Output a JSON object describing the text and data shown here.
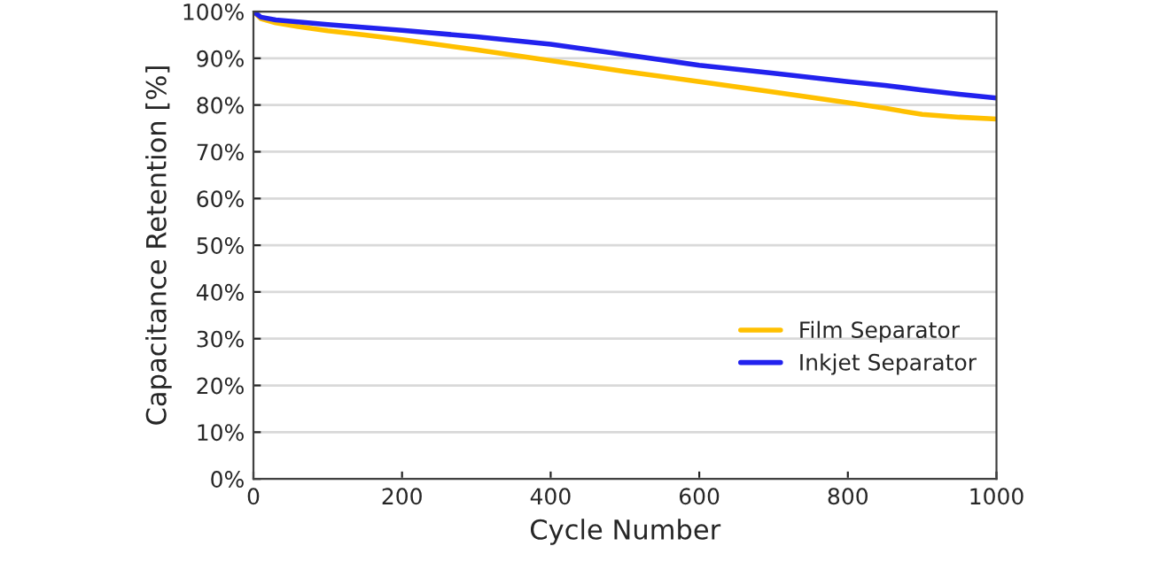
{
  "chart_data": {
    "type": "line",
    "xlabel": "Cycle Number",
    "ylabel": "Capacitance Retention [%]",
    "xlim": [
      0,
      1000
    ],
    "xticks": [
      0,
      200,
      400,
      600,
      800,
      1000
    ],
    "ylim": [
      0,
      100
    ],
    "yticks": [
      {
        "value": 0,
        "label": "0%"
      },
      {
        "value": 10,
        "label": "10%"
      },
      {
        "value": 20,
        "label": "20%"
      },
      {
        "value": 30,
        "label": "30%"
      },
      {
        "value": 40,
        "label": "40%"
      },
      {
        "value": 50,
        "label": "50%"
      },
      {
        "value": 60,
        "label": "60%"
      },
      {
        "value": 70,
        "label": "70%"
      },
      {
        "value": 80,
        "label": "80%"
      },
      {
        "value": 90,
        "label": "90%"
      },
      {
        "value": 100,
        "label": "100%"
      }
    ],
    "grid": "y",
    "legend": "bottom right",
    "x": [
      0,
      10,
      30,
      60,
      100,
      150,
      200,
      300,
      400,
      500,
      600,
      700,
      800,
      850,
      900,
      950,
      1000
    ],
    "series": [
      {
        "name": "Film Separator",
        "color": "#ffc000",
        "values": [
          100,
          98.5,
          97.6,
          96.8,
          95.9,
          95,
          94,
          91.8,
          89.5,
          87.2,
          85,
          82.8,
          80.5,
          79.3,
          78,
          77.4,
          77
        ]
      },
      {
        "name": "Inkjet Separator",
        "color": "#2222ee",
        "values": [
          100,
          98.8,
          98.2,
          97.8,
          97.2,
          96.6,
          96,
          94.6,
          93,
          90.8,
          88.5,
          86.8,
          85,
          84.2,
          83.2,
          82.3,
          81.5
        ]
      }
    ]
  }
}
